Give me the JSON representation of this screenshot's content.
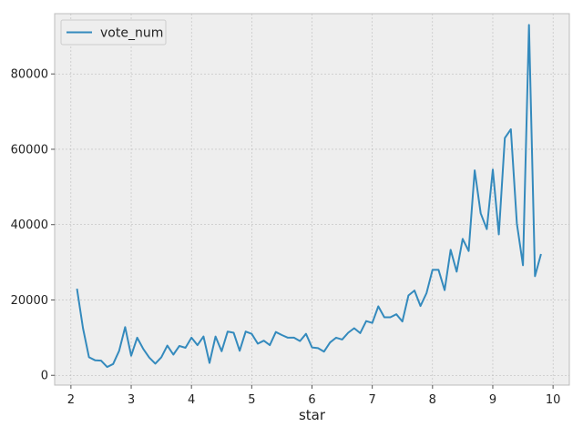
{
  "chart_data": {
    "type": "line",
    "xlabel": "star",
    "ylabel": "",
    "xlim": [
      1.73,
      10.27
    ],
    "ylim": [
      -2600,
      96000
    ],
    "xticks": [
      2,
      3,
      4,
      5,
      6,
      7,
      8,
      9,
      10
    ],
    "yticks": [
      0,
      20000,
      40000,
      60000,
      80000
    ],
    "grid": true,
    "legend_position": "top-left",
    "series": [
      {
        "name": "vote_num",
        "color": "#348abd",
        "x": [
          2.1,
          2.2,
          2.3,
          2.4,
          2.5,
          2.6,
          2.7,
          2.8,
          2.9,
          3.0,
          3.1,
          3.2,
          3.3,
          3.4,
          3.5,
          3.6,
          3.7,
          3.8,
          3.9,
          4.0,
          4.1,
          4.2,
          4.3,
          4.4,
          4.5,
          4.6,
          4.7,
          4.8,
          4.9,
          5.0,
          5.1,
          5.2,
          5.3,
          5.4,
          5.5,
          5.6,
          5.7,
          5.8,
          5.9,
          6.0,
          6.1,
          6.2,
          6.3,
          6.4,
          6.5,
          6.6,
          6.7,
          6.8,
          6.9,
          7.0,
          7.1,
          7.2,
          7.3,
          7.4,
          7.5,
          7.6,
          7.7,
          7.8,
          7.9,
          8.0,
          8.1,
          8.2,
          8.3,
          8.4,
          8.5,
          8.6,
          8.7,
          8.8,
          8.9,
          9.0,
          9.1,
          9.2,
          9.3,
          9.4,
          9.5,
          9.6,
          9.7,
          9.8
        ],
        "values": [
          23000,
          12500,
          4800,
          4000,
          3900,
          2200,
          3000,
          6500,
          12800,
          5200,
          10000,
          7000,
          4700,
          3100,
          4800,
          7900,
          5500,
          7800,
          7300,
          10000,
          8000,
          10300,
          3300,
          10300,
          6400,
          11600,
          11300,
          6500,
          11600,
          11000,
          8400,
          9200,
          8000,
          11500,
          10700,
          10000,
          10000,
          9100,
          11000,
          7400,
          7200,
          6300,
          8700,
          10000,
          9500,
          11300,
          12500,
          11200,
          14400,
          13900,
          18300,
          15400,
          15400,
          16200,
          14300,
          21200,
          22500,
          18400,
          21800,
          28000,
          28000,
          22600,
          33300,
          27500,
          36200,
          33000,
          54400,
          43000,
          38800,
          54600,
          37400,
          63000,
          65300,
          40300,
          29200,
          93000,
          26300,
          32200
        ]
      }
    ]
  }
}
